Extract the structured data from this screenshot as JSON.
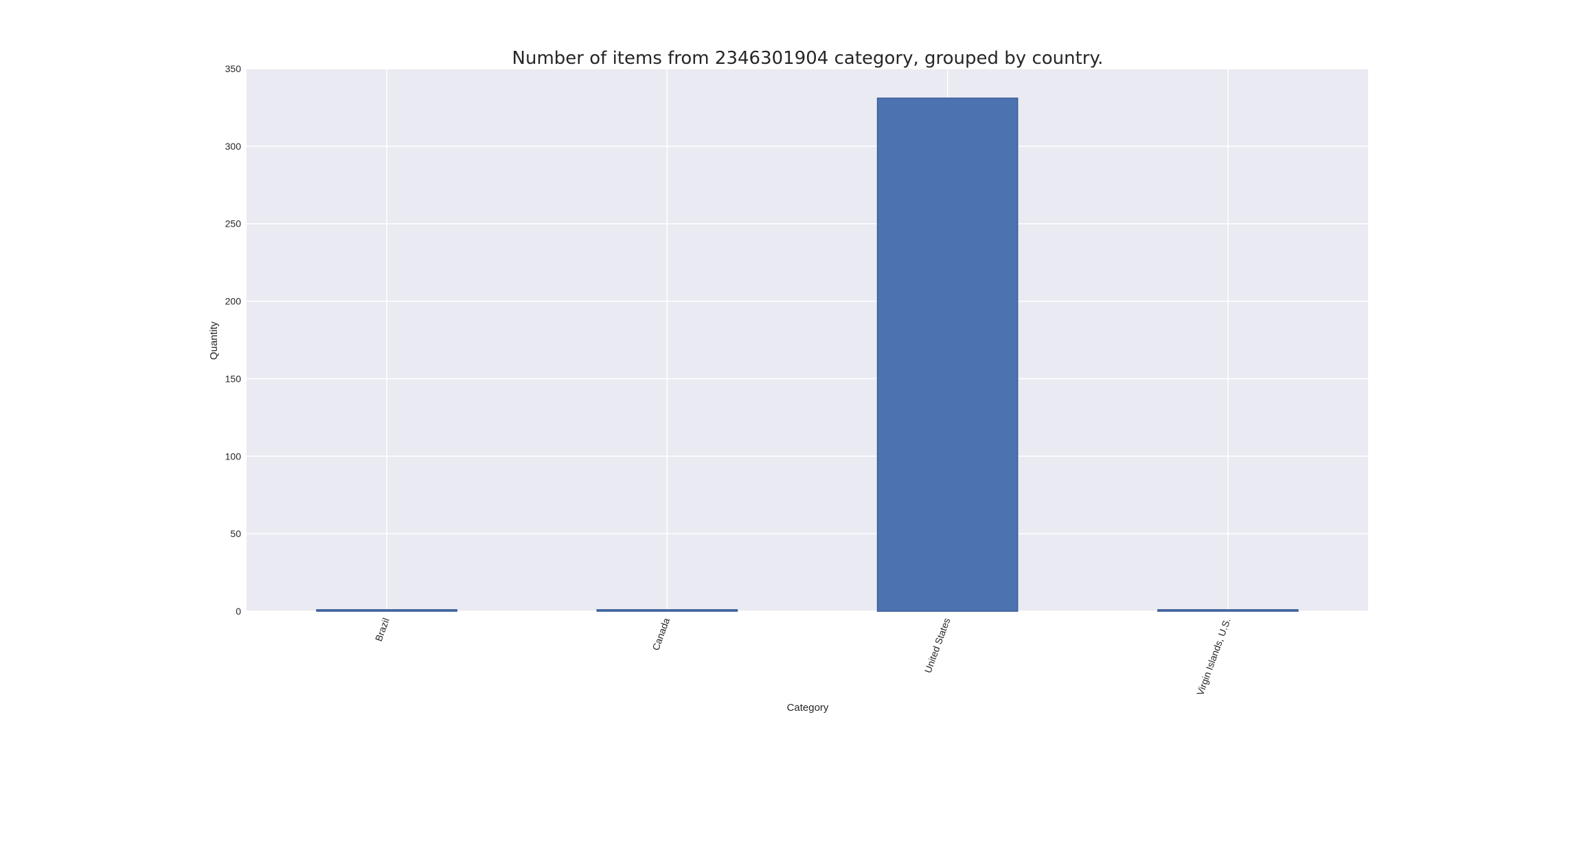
{
  "chart_data": {
    "type": "bar",
    "title": "Number of items from 2346301904 category, grouped by country.",
    "xlabel": "Category",
    "ylabel": "Quantity",
    "categories": [
      "Brazil",
      "Canada",
      "United States",
      "Virgin Islands, U.S."
    ],
    "values": [
      1,
      1,
      331,
      1
    ],
    "ylim": [
      0,
      350
    ],
    "yticks": [
      0,
      50,
      100,
      150,
      200,
      250,
      300,
      350
    ],
    "grid": true,
    "colors": {
      "bar": "#4c72b0",
      "bar_edge": "#3b5f98",
      "plot_background": "#eaeaf2",
      "grid": "#ffffff",
      "text": "#262626"
    }
  }
}
